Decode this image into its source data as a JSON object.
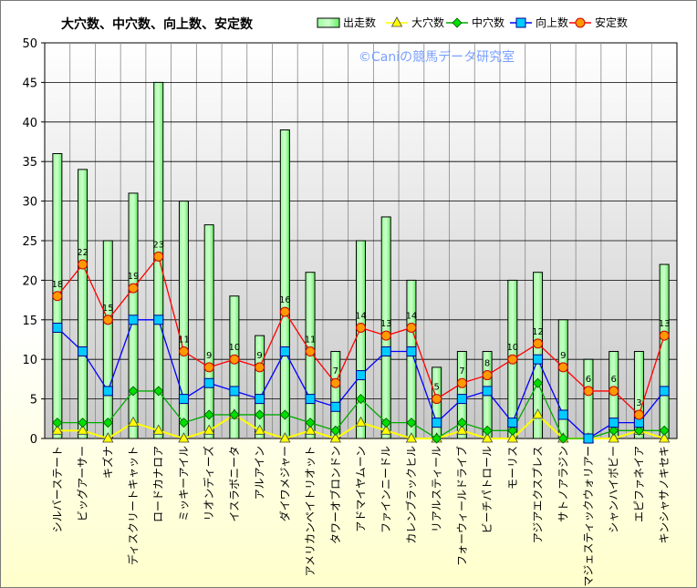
{
  "chart_data": {
    "type": "bar+line",
    "title": "大穴数、中穴数、向上数、安定数",
    "watermark": "©Caniの競馬データ研究室",
    "ylim": [
      0,
      50
    ],
    "yticks": [
      0,
      5,
      10,
      15,
      20,
      25,
      30,
      35,
      40,
      45,
      50
    ],
    "grid": true,
    "legend_position": "top-right",
    "categories": [
      "シルバーステート",
      "ビッグアーサー",
      "キズナ",
      "ディスクリートキャット",
      "ロードカナロア",
      "ミッキーアイル",
      "リオンディーズ",
      "イスラボニータ",
      "アルアイン",
      "ダイワメジャー",
      "アメリカンペイトリオット",
      "タワーオブロンドン",
      "アドマイヤムーン",
      "ファインニードル",
      "カレンブラックヒル",
      "リアルスティール",
      "フォーウィールドライブ",
      "ビーチパトロール",
      "モーリス",
      "アジアエクスプレス",
      "サトノアラジン",
      "マジェスティックウォリアー",
      "シャンハイボビー",
      "エピファネイア",
      "キンシャサノキセキ"
    ],
    "series": [
      {
        "name": "出走数",
        "type": "bar",
        "color": "#66ff66",
        "values": [
          36,
          34,
          25,
          31,
          45,
          30,
          27,
          18,
          13,
          39,
          21,
          11,
          25,
          28,
          20,
          9,
          11,
          11,
          20,
          21,
          15,
          10,
          11,
          11,
          22
        ]
      },
      {
        "name": "大穴数",
        "type": "line",
        "color": "#ffff00",
        "marker": "triangle",
        "values": [
          1,
          1,
          0,
          2,
          1,
          0,
          1,
          3,
          1,
          0,
          1,
          0,
          2,
          1,
          0,
          0,
          1,
          0,
          0,
          3,
          0,
          0,
          0,
          1,
          0
        ]
      },
      {
        "name": "中穴数",
        "type": "line",
        "color": "#00aa00",
        "marker": "diamond",
        "values": [
          2,
          2,
          2,
          6,
          6,
          2,
          3,
          3,
          3,
          3,
          2,
          1,
          5,
          2,
          2,
          0,
          2,
          1,
          1,
          7,
          0,
          0,
          1,
          1,
          1
        ]
      },
      {
        "name": "向上数",
        "type": "line",
        "color": "#0000ff",
        "marker": "square",
        "values": [
          14,
          11,
          6,
          15,
          15,
          5,
          7,
          6,
          5,
          11,
          5,
          4,
          8,
          11,
          11,
          2,
          5,
          6,
          2,
          10,
          3,
          0,
          2,
          2,
          6
        ]
      },
      {
        "name": "安定数",
        "type": "line",
        "color": "#ff0000",
        "marker": "circle",
        "values": [
          18,
          22,
          15,
          19,
          23,
          11,
          9,
          10,
          9,
          16,
          11,
          7,
          14,
          13,
          14,
          5,
          7,
          8,
          10,
          12,
          9,
          6,
          6,
          3,
          13
        ]
      }
    ]
  }
}
